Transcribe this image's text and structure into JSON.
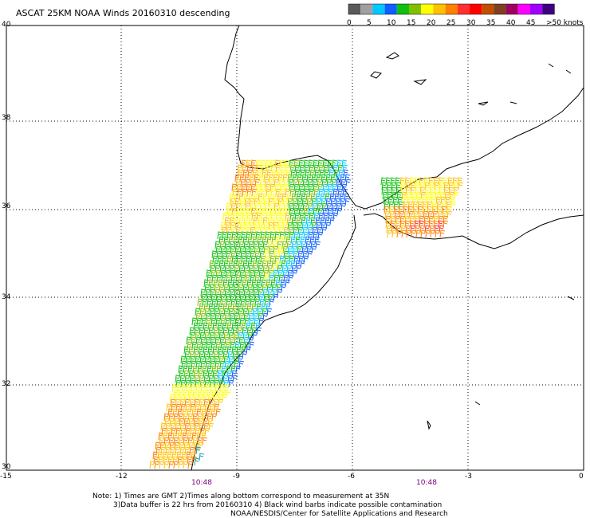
{
  "title": "ASCAT 25KM NOAA Winds 20160310 descending",
  "legend": {
    "colors": [
      "#5a5a5a",
      "#a0a0a0",
      "#00c8ff",
      "#1060ff",
      "#10c010",
      "#80c000",
      "#ffff00",
      "#ffc000",
      "#ff8000",
      "#ff3030",
      "#ff0000",
      "#c05000",
      "#804020",
      "#a00060",
      "#ff00ff",
      "#a000ff",
      "#400080"
    ],
    "labels": [
      "0",
      "5",
      "10",
      "15",
      "20",
      "25",
      "30",
      "35",
      "40",
      "45",
      ">50 knots"
    ]
  },
  "axes": {
    "lat_labels": [
      "40",
      "38",
      "36",
      "34",
      "32",
      "30"
    ],
    "lon_labels": [
      "-15",
      "-12",
      "-9",
      "-6",
      "-3",
      "0"
    ]
  },
  "times": [
    "10:48",
    "10:48"
  ],
  "notes": [
    "Note: 1) Times are GMT 2)Times along bottom correspond to measurement at 35N",
    "3)Data buffer is 22 hrs from 20160310 4) Black wind barbs indicate possible contamination",
    "NOAA/NESDIS/Center for Satellite Applications and Research"
  ]
}
